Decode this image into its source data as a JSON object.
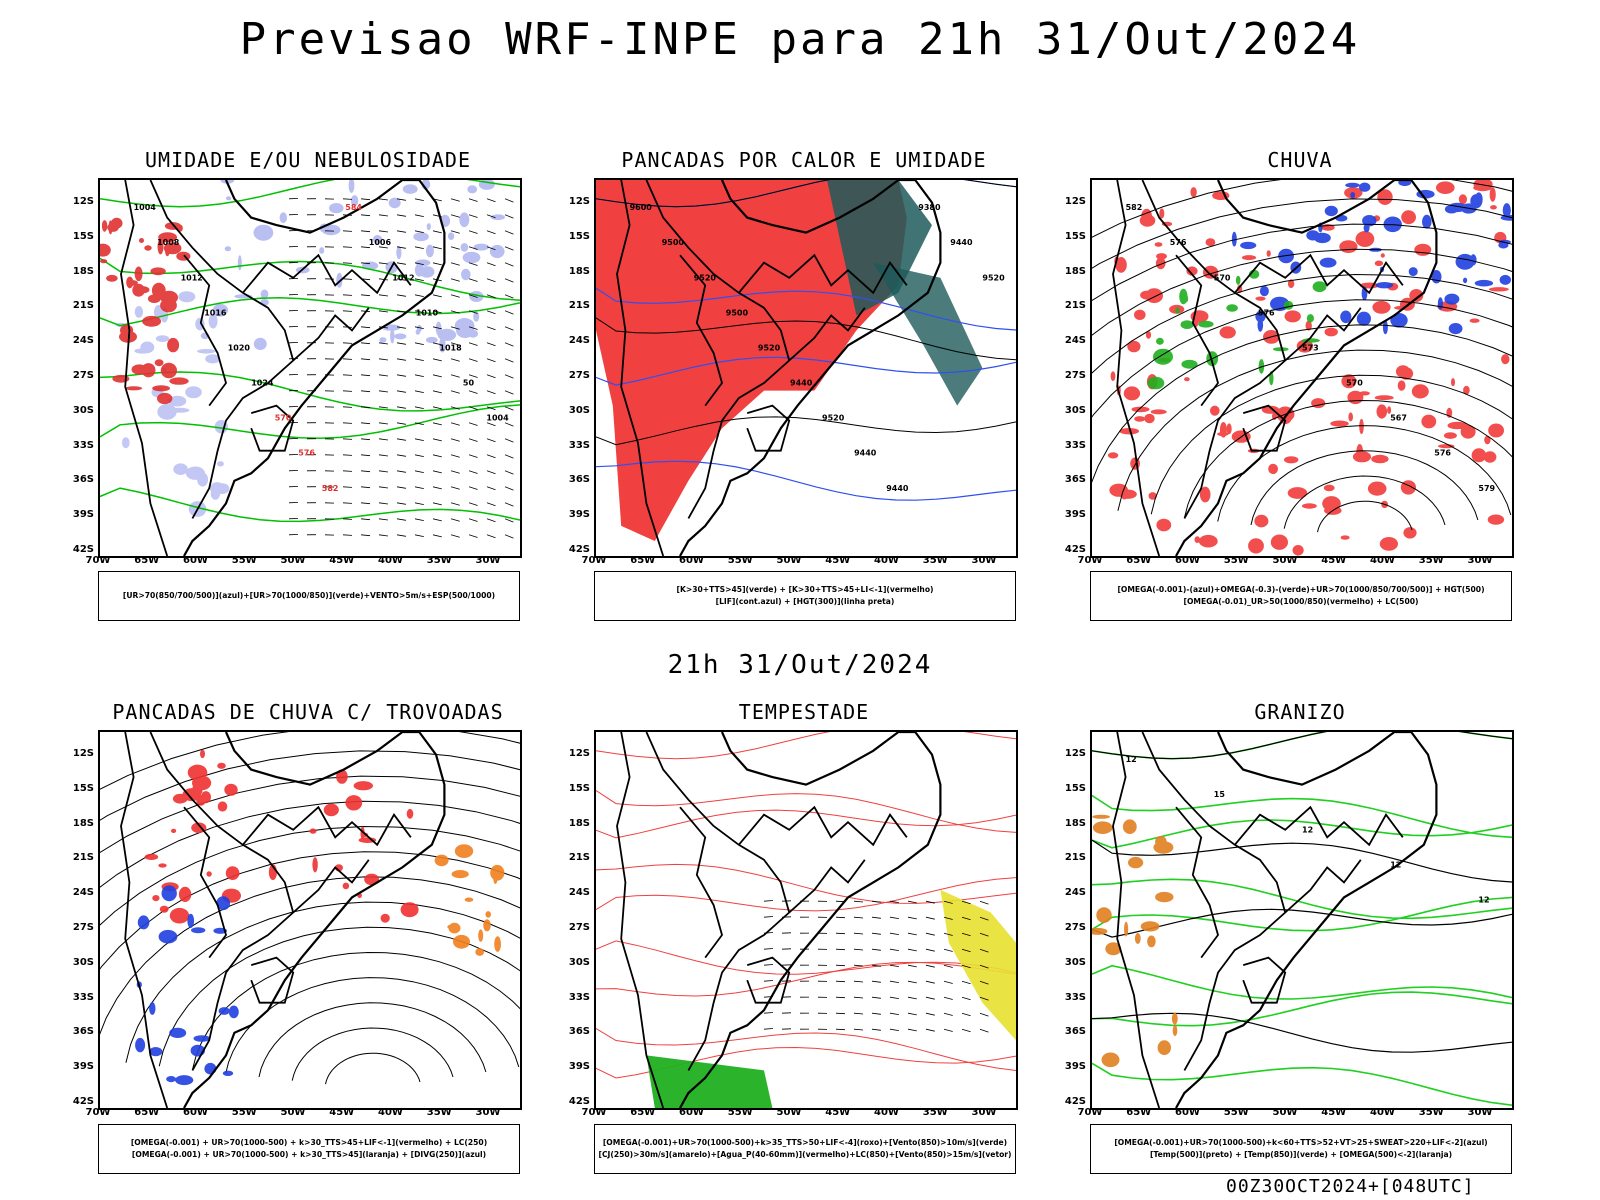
{
  "title": "Previsao WRF-INPE  para 21h 31/Out/2024",
  "subtitle": "21h 31/Out/2024",
  "footer": "00Z30OCT2024+[048UTC]",
  "lat_ticks": [
    "12S",
    "15S",
    "18S",
    "21S",
    "24S",
    "27S",
    "30S",
    "33S",
    "36S",
    "39S",
    "42S"
  ],
  "lon_ticks": [
    "70W",
    "65W",
    "60W",
    "55W",
    "50W",
    "45W",
    "40W",
    "35W",
    "30W"
  ],
  "panels": [
    {
      "title": "UMIDADE E/OU NEBULOSIDADE",
      "legend": [
        "[UR>70(850/700/500)](azul)+[UR>70(1000/850)](verde)+VENTO>5m/s+ESP(500/1000)"
      ],
      "labels": [
        "1004",
        "1008",
        "1012",
        "1016",
        "1020",
        "1024",
        "570",
        "576",
        "582",
        "584",
        "1006",
        "1012",
        "1010",
        "1018",
        "50",
        "1004"
      ]
    },
    {
      "title": "PANCADAS POR CALOR E UMIDADE",
      "legend": [
        "[K>30+TTS>45](verde) + [K>30+TTS>45+LI<-1](vermelho)",
        "[LIF](cont.azul) + [HGT(300)](linha preta)"
      ],
      "labels": [
        "9600",
        "9500",
        "9520",
        "9500",
        "9520",
        "9440",
        "9520",
        "9440",
        "9440",
        "9380",
        "9440",
        "9520"
      ]
    },
    {
      "title": "CHUVA",
      "legend": [
        "[OMEGA(-0.001)-(azul)+OMEGA(-0.3)-(verde)+UR>70(1000/850/700/500)] + HGT(500)",
        "[OMEGA(-0.01)_UR>50(1000/850)(vermelho) + LC(500)"
      ],
      "labels": [
        "582",
        "576",
        "570",
        "576",
        "573",
        "570",
        "567",
        "576",
        "579"
      ]
    },
    {
      "title": "PANCADAS DE CHUVA C/ TROVOADAS",
      "legend": [
        "[OMEGA(-0.001) + UR>70(1000-500) + k>30_TTS>45+LIF<-1](vermelho) + LC(250)",
        "[OMEGA(-0.001) + UR>70(1000-500) + k>30_TTS>45](laranja) + [DIVG(250)](azul)"
      ],
      "labels": []
    },
    {
      "title": "TEMPESTADE",
      "legend": [
        "[OMEGA(-0.001)+UR>70(1000-500)+k>35_TTS>50+LIF<-4](roxo)+[Vento(850)>10m/s](verde)",
        "[CJ(250)>30m/s](amarelo)+[Agua_P(40-60mm)](vermelho)+LC(850)+[Vento(850)>15m/s](vetor)"
      ],
      "labels": []
    },
    {
      "title": "GRANIZO",
      "legend": [
        "[OMEGA(-0.001)+UR>70(1000-500)+k<60+TTS>52+VT>25+SWEAT>220+LIF<-2](azul)",
        "[Temp(500)](preto) + [Temp(850)](verde) + [OMEGA(500)<-2](laranja)"
      ],
      "labels": [
        "12",
        "15",
        "12",
        "12",
        "12"
      ]
    }
  ]
}
